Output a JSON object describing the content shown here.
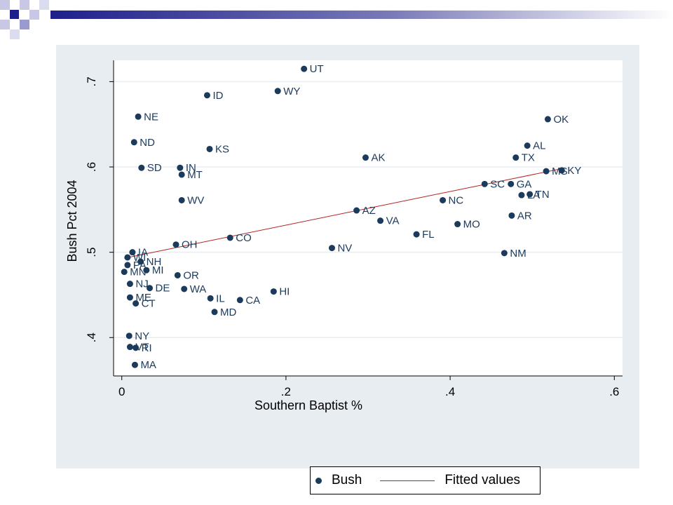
{
  "colors": {
    "marker": "#1b3a5c",
    "fit_line": "#b22222",
    "panel_bg": "#e8edf1",
    "plot_bg": "#ffffff",
    "grid": "#e8edf1",
    "deco_dark": "#1f1f8c",
    "deco_light": "#c8c8e6"
  },
  "legend": {
    "bush_label": "Bush",
    "fit_label": "Fitted values"
  },
  "chart_data": {
    "type": "scatter",
    "title": "",
    "xlabel": "Southern Baptist %",
    "ylabel": "Bush Pct 2004",
    "xlim": [
      -0.01,
      0.61
    ],
    "ylim": [
      0.355,
      0.725
    ],
    "x_ticks": [
      0,
      0.2,
      0.4,
      0.6
    ],
    "x_tick_labels": [
      "0",
      ".2",
      ".4",
      ".6"
    ],
    "y_ticks": [
      0.4,
      0.5,
      0.6,
      0.7
    ],
    "y_tick_labels": [
      ".4",
      ".5",
      ".6",
      ".7"
    ],
    "grid": true,
    "legend_position": "bottom",
    "series": [
      {
        "name": "Bush",
        "points": [
          {
            "label": "UT",
            "x": 0.222,
            "y": 0.715
          },
          {
            "label": "WY",
            "x": 0.19,
            "y": 0.689
          },
          {
            "label": "ID",
            "x": 0.104,
            "y": 0.684
          },
          {
            "label": "NE",
            "x": 0.02,
            "y": 0.659
          },
          {
            "label": "OK",
            "x": 0.519,
            "y": 0.656
          },
          {
            "label": "ND",
            "x": 0.015,
            "y": 0.629
          },
          {
            "label": "AL",
            "x": 0.494,
            "y": 0.625
          },
          {
            "label": "KS",
            "x": 0.107,
            "y": 0.621
          },
          {
            "label": "AK",
            "x": 0.297,
            "y": 0.611
          },
          {
            "label": "TX",
            "x": 0.48,
            "y": 0.611
          },
          {
            "label": "SD",
            "x": 0.024,
            "y": 0.599
          },
          {
            "label": "IN",
            "x": 0.071,
            "y": 0.599
          },
          {
            "label": "MS",
            "x": 0.517,
            "y": 0.595
          },
          {
            "label": "KY",
            "x": 0.536,
            "y": 0.596
          },
          {
            "label": "MT",
            "x": 0.073,
            "y": 0.591
          },
          {
            "label": "SC",
            "x": 0.442,
            "y": 0.58
          },
          {
            "label": "GA",
            "x": 0.474,
            "y": 0.58
          },
          {
            "label": "TN",
            "x": 0.497,
            "y": 0.568
          },
          {
            "label": "LA",
            "x": 0.487,
            "y": 0.567
          },
          {
            "label": "WV",
            "x": 0.073,
            "y": 0.561
          },
          {
            "label": "NC",
            "x": 0.391,
            "y": 0.561
          },
          {
            "label": "AZ",
            "x": 0.286,
            "y": 0.549
          },
          {
            "label": "AR",
            "x": 0.475,
            "y": 0.543
          },
          {
            "label": "VA",
            "x": 0.315,
            "y": 0.537
          },
          {
            "label": "MO",
            "x": 0.409,
            "y": 0.533
          },
          {
            "label": "FL",
            "x": 0.359,
            "y": 0.521
          },
          {
            "label": "CO",
            "x": 0.132,
            "y": 0.517
          },
          {
            "label": "OH",
            "x": 0.066,
            "y": 0.509
          },
          {
            "label": "NV",
            "x": 0.256,
            "y": 0.505
          },
          {
            "label": "IA",
            "x": 0.013,
            "y": 0.5
          },
          {
            "label": "NM",
            "x": 0.466,
            "y": 0.499
          },
          {
            "label": "WI",
            "x": 0.007,
            "y": 0.494
          },
          {
            "label": "NH",
            "x": 0.023,
            "y": 0.489
          },
          {
            "label": "PA",
            "x": 0.007,
            "y": 0.485
          },
          {
            "label": "MI",
            "x": 0.03,
            "y": 0.479
          },
          {
            "label": "MN",
            "x": 0.003,
            "y": 0.477
          },
          {
            "label": "OR",
            "x": 0.068,
            "y": 0.473
          },
          {
            "label": "NJ",
            "x": 0.01,
            "y": 0.463
          },
          {
            "label": "DE",
            "x": 0.034,
            "y": 0.458
          },
          {
            "label": "WA",
            "x": 0.076,
            "y": 0.457
          },
          {
            "label": "HI",
            "x": 0.185,
            "y": 0.454
          },
          {
            "label": "ME",
            "x": 0.01,
            "y": 0.447
          },
          {
            "label": "IL",
            "x": 0.108,
            "y": 0.446
          },
          {
            "label": "CA",
            "x": 0.144,
            "y": 0.444
          },
          {
            "label": "CT",
            "x": 0.017,
            "y": 0.44
          },
          {
            "label": "MD",
            "x": 0.113,
            "y": 0.43
          },
          {
            "label": "NY",
            "x": 0.009,
            "y": 0.402
          },
          {
            "label": "VT",
            "x": 0.01,
            "y": 0.389
          },
          {
            "label": "RI",
            "x": 0.017,
            "y": 0.388
          },
          {
            "label": "MA",
            "x": 0.016,
            "y": 0.368
          }
        ]
      },
      {
        "name": "Fitted values",
        "type": "line",
        "x": [
          0.003,
          0.536
        ],
        "y": [
          0.493,
          0.598
        ]
      }
    ]
  }
}
